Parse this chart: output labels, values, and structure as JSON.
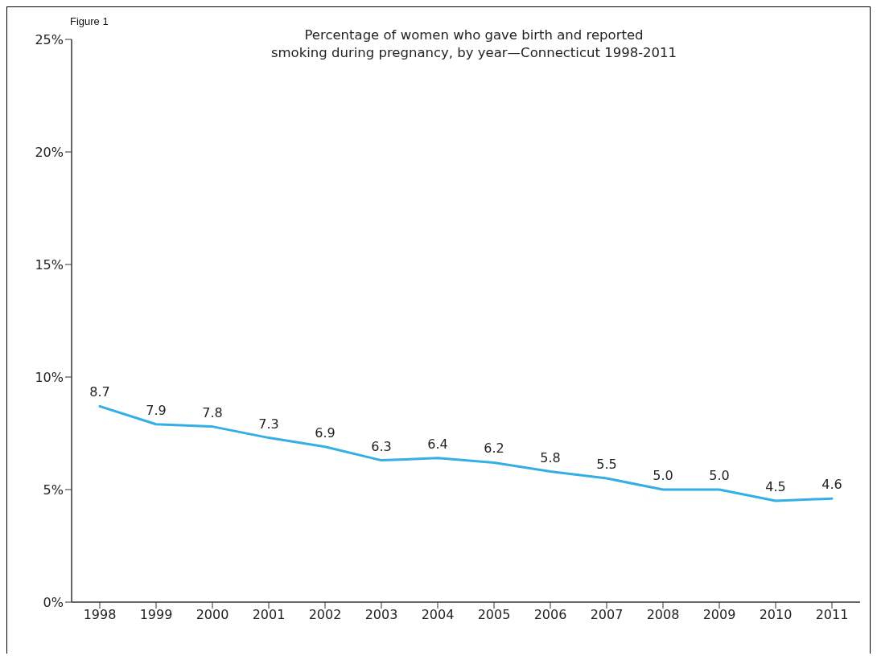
{
  "chart_data": {
    "type": "line",
    "title": "Percentage of women who gave birth and reported\nsmoking during pregnancy, by year—Connecticut 1998-2011",
    "annotations": [
      "Figure 1"
    ],
    "categories": [
      "1998",
      "1999",
      "2000",
      "2001",
      "2002",
      "2003",
      "2004",
      "2005",
      "2006",
      "2007",
      "2008",
      "2009",
      "2010",
      "2011"
    ],
    "series": [
      {
        "color": "#33aee6",
        "values": [
          8.7,
          7.9,
          7.8,
          7.3,
          6.9,
          6.3,
          6.4,
          6.2,
          5.8,
          5.5,
          5.0,
          5.0,
          4.5,
          4.6
        ],
        "value_labels": [
          "8.7",
          "7.9",
          "7.8",
          "7.3",
          "6.9",
          "6.3",
          "6.4",
          "6.2",
          "5.8",
          "5.5",
          "5.0",
          "5.0",
          "4.5",
          "4.6"
        ]
      }
    ],
    "ylim": [
      0,
      25
    ],
    "yticks": [
      {
        "value": 0,
        "label": "0%"
      },
      {
        "value": 5,
        "label": "5%"
      },
      {
        "value": 10,
        "label": "10%"
      },
      {
        "value": 15,
        "label": "15%"
      },
      {
        "value": 20,
        "label": "20%"
      },
      {
        "value": 25,
        "label": "25%"
      }
    ],
    "grid": false,
    "legend": false,
    "marker": "none",
    "line_style": "solid"
  }
}
